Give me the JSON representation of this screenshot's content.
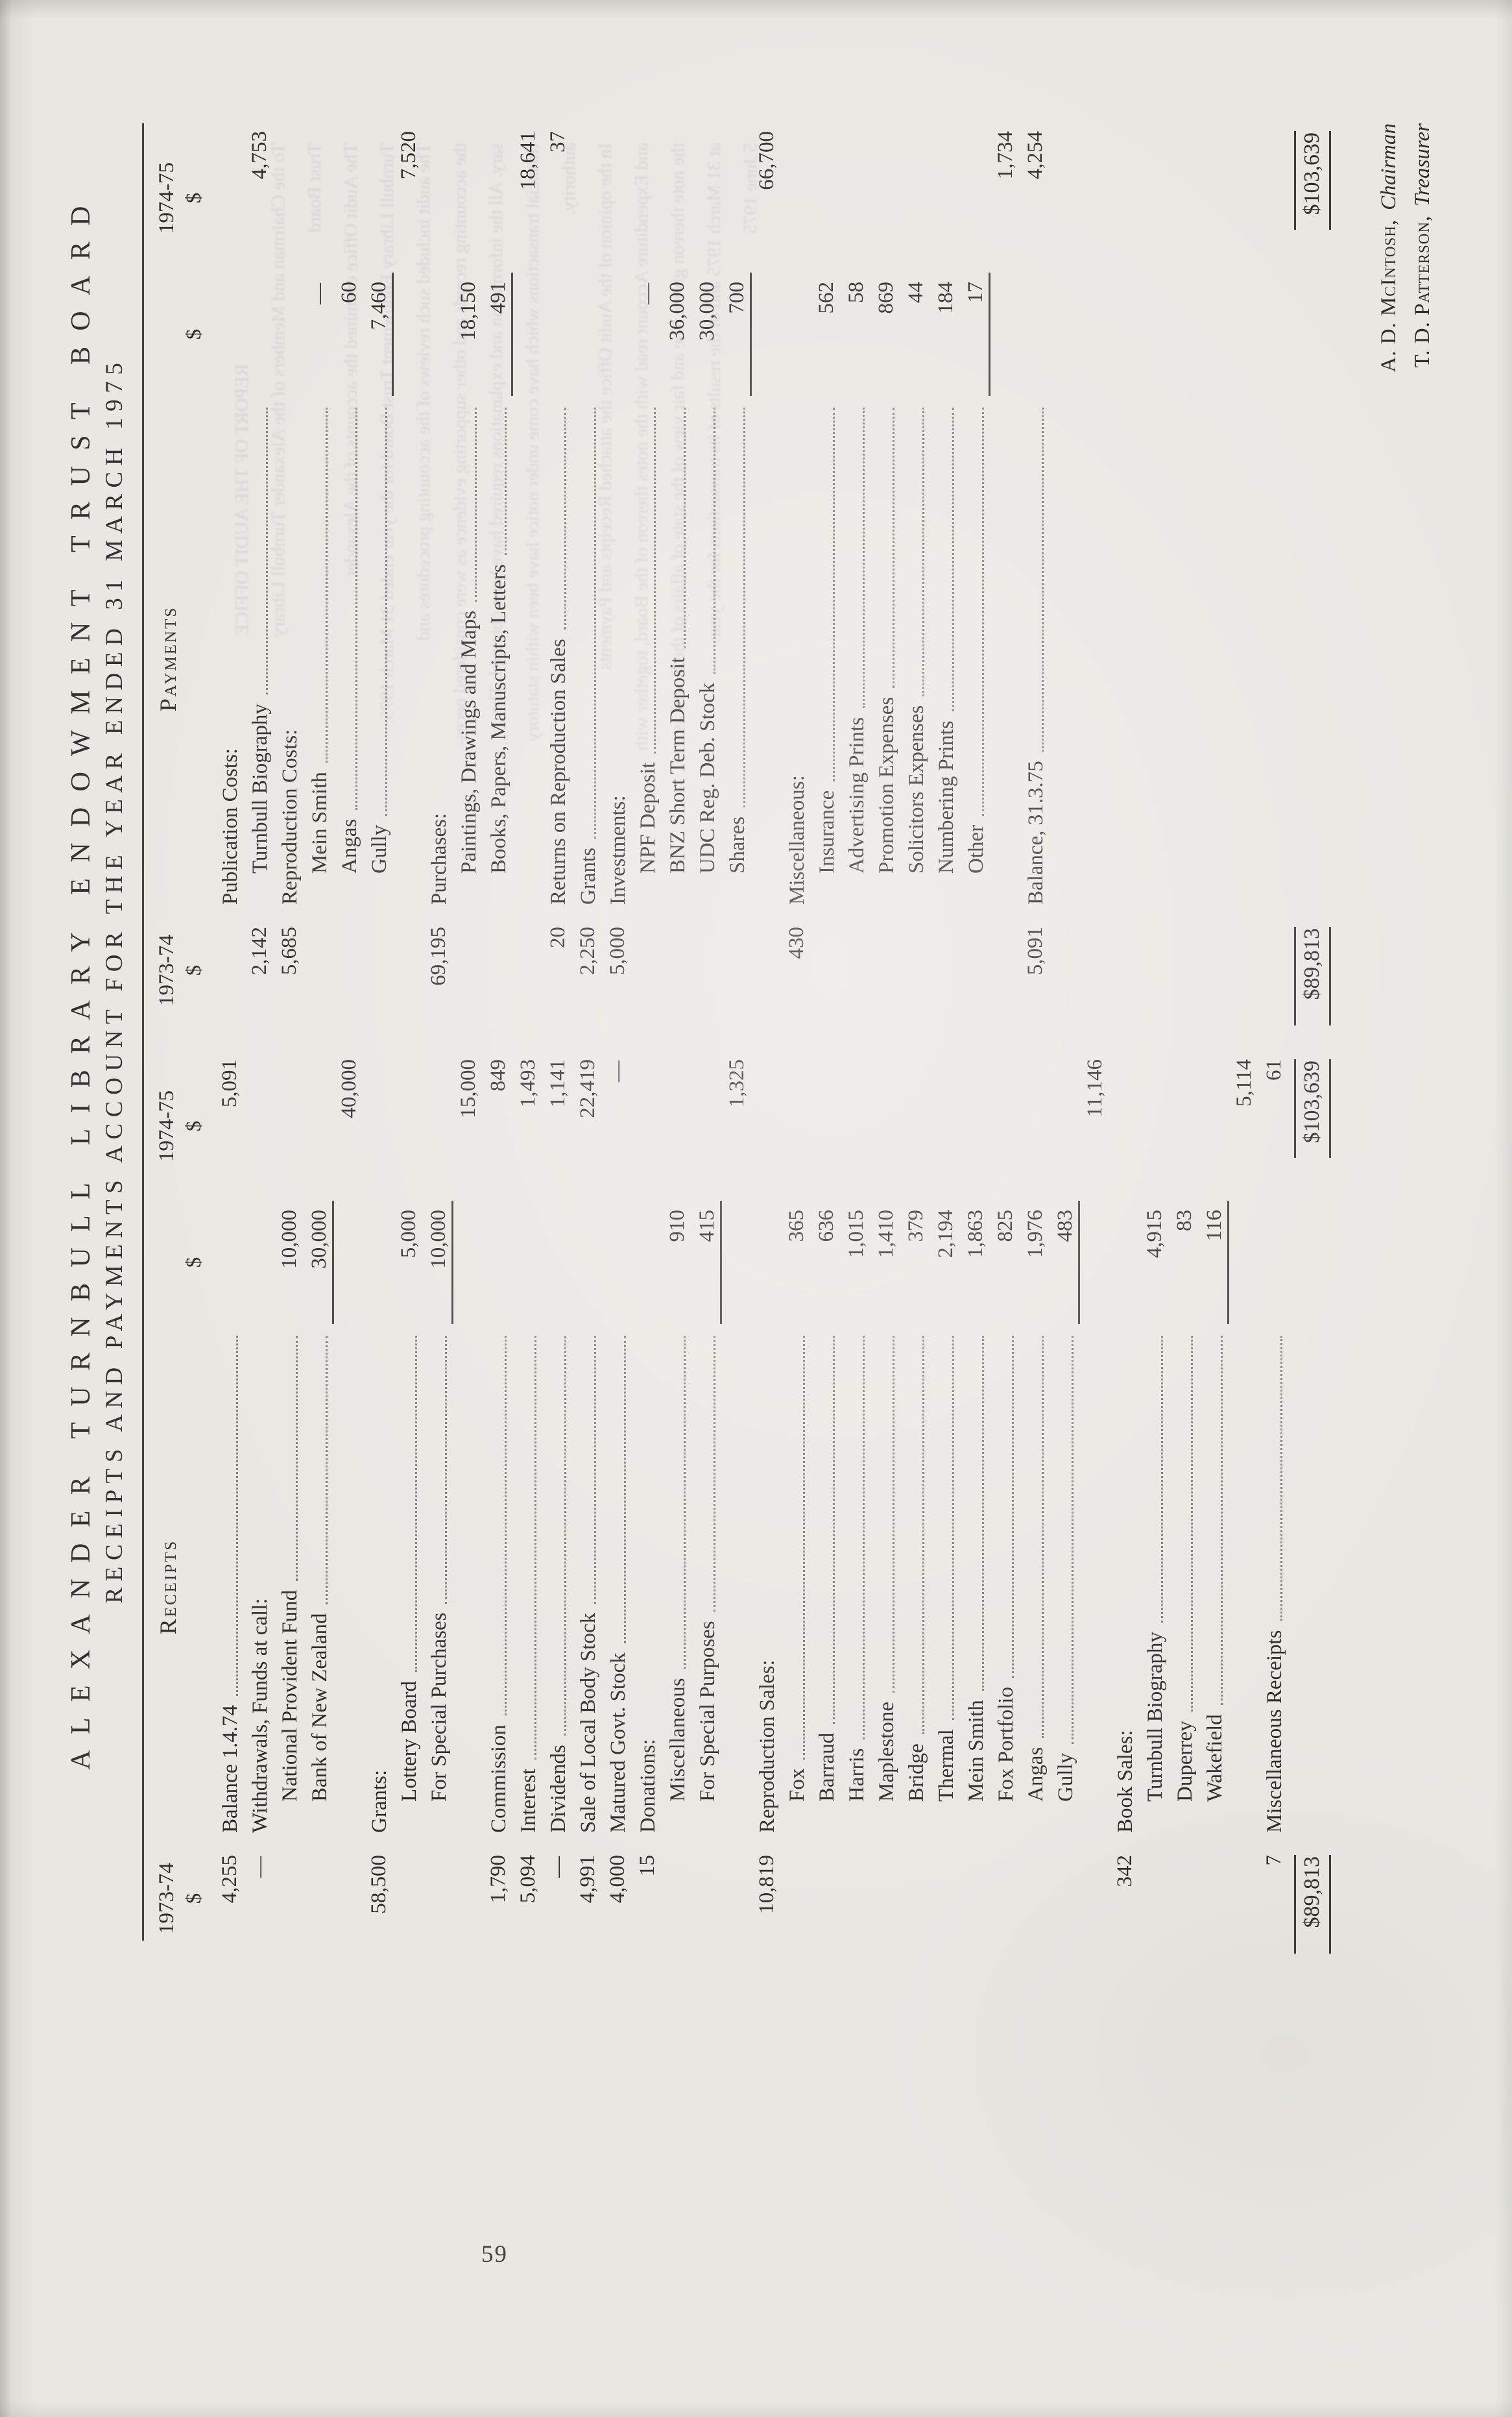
{
  "page": {
    "number": "59"
  },
  "title": {
    "line1": "ALEXANDER TURNBULL LIBRARY ENDOWMENT TRUST BOARD",
    "line2": "RECEIPTS AND PAYMENTS ACCOUNT FOR THE YEAR ENDED 31 MARCH 1975"
  },
  "table": {
    "receipts": {
      "heading": "Receipts",
      "prev_year": "1973-74",
      "cur_year": "1974-75",
      "dollar": "$",
      "rows": [
        {
          "l": "Balance 1.4.74",
          "dt": 1,
          "p": "4,255",
          "t": "5,091"
        },
        {
          "l": "Withdrawals, Funds at call:",
          "p": "—"
        },
        {
          "l": "National Provident Fund",
          "i": 1,
          "dt": 1,
          "d": "10,000"
        },
        {
          "l": "Bank of New Zealand",
          "i": 1,
          "dt": 1,
          "d": "30,000",
          "r": 1
        },
        {
          "s": 1,
          "t": "40,000"
        },
        {
          "l": "Grants:",
          "p": "58,500"
        },
        {
          "l": "Lottery Board",
          "i": 1,
          "dt": 1,
          "d": "5,000"
        },
        {
          "l": "For Special Purchases",
          "i": 1,
          "dt": 1,
          "d": "10,000",
          "r": 1
        },
        {
          "s": 1,
          "t": "15,000"
        },
        {
          "l": "Commission",
          "dt": 1,
          "p": "1,790",
          "t": "849"
        },
        {
          "l": "Interest",
          "dt": 1,
          "p": "5,094",
          "t": "1,493"
        },
        {
          "l": "Dividends",
          "dt": 1,
          "p": "—",
          "t": "1,141"
        },
        {
          "l": "Sale of Local Body Stock",
          "dt": 1,
          "p": "4,991",
          "t": "22,419"
        },
        {
          "l": "Matured Govt. Stock",
          "dt": 1,
          "p": "4,000",
          "t": "—"
        },
        {
          "l": "Donations:",
          "p": "15"
        },
        {
          "l": "Miscellaneous",
          "i": 1,
          "dt": 1,
          "d": "910"
        },
        {
          "l": "For Special Purposes",
          "i": 1,
          "dt": 1,
          "d": "415",
          "r": 1
        },
        {
          "s": 1,
          "t": "1,325"
        },
        {
          "l": "Reproduction Sales:",
          "p": "10,819"
        },
        {
          "l": "Fox",
          "i": 1,
          "dt": 1,
          "d": "365"
        },
        {
          "l": "Barraud",
          "i": 1,
          "dt": 1,
          "d": "636"
        },
        {
          "l": "Harris",
          "i": 1,
          "dt": 1,
          "d": "1,015"
        },
        {
          "l": "Maplestone",
          "i": 1,
          "dt": 1,
          "d": "1,410"
        },
        {
          "l": "Bridge",
          "i": 1,
          "dt": 1,
          "d": "379"
        },
        {
          "l": "Thermal",
          "i": 1,
          "dt": 1,
          "d": "2,194"
        },
        {
          "l": "Mein Smith",
          "i": 1,
          "dt": 1,
          "d": "1,863"
        },
        {
          "l": "Fox Portfolio",
          "i": 1,
          "dt": 1,
          "d": "825"
        },
        {
          "l": "Angas",
          "i": 1,
          "dt": 1,
          "d": "1,976"
        },
        {
          "l": "Gully",
          "i": 1,
          "dt": 1,
          "d": "483",
          "r": 1
        },
        {
          "s": 1,
          "t": "11,146"
        },
        {
          "l": "Book Sales:",
          "p": "342"
        },
        {
          "l": "Turnbull Biography",
          "i": 1,
          "dt": 1,
          "d": "4,915"
        },
        {
          "l": "Duperrey",
          "i": 1,
          "dt": 1,
          "d": "83"
        },
        {
          "l": "Wakefield",
          "i": 1,
          "dt": 1,
          "d": "116",
          "r": 1
        },
        {
          "s": 1,
          "t": "5,114"
        },
        {
          "l": "Miscellaneous Receipts",
          "dt": 1,
          "p": "7",
          "t": "61"
        }
      ],
      "total_prev": "$89,813",
      "total_cur": "$103,639"
    },
    "payments": {
      "heading": "Payments",
      "prev_year": "1973-74",
      "cur_year": "1974-75",
      "dollar": "$",
      "rows": [
        {
          "l": "Publication Costs:"
        },
        {
          "l": "Turnbull Biography",
          "i": 1,
          "dt": 1,
          "p": "2,142",
          "t": "4,753"
        },
        {
          "l": "Reproduction Costs:",
          "p": "5,685"
        },
        {
          "l": "Mein Smith",
          "i": 1,
          "dt": 1,
          "d": "—"
        },
        {
          "l": "Angas",
          "i": 1,
          "dt": 1,
          "d": "60"
        },
        {
          "l": "Gully",
          "i": 1,
          "dt": 1,
          "d": "7,460",
          "r": 1
        },
        {
          "s": 1,
          "t": "7,520"
        },
        {
          "l": "Purchases:",
          "p": "69,195"
        },
        {
          "l": "Paintings, Drawings and Maps",
          "i": 1,
          "dt": 1,
          "d": "18,150"
        },
        {
          "l": "Books, Papers, Manuscripts, Letters",
          "i": 1,
          "dt": 1,
          "d": "491",
          "r": 1
        },
        {
          "s": 1,
          "t": "18,641"
        },
        {
          "l": "Returns on Reproduction Sales",
          "dt": 1,
          "p": "20",
          "t": "37"
        },
        {
          "l": "Grants",
          "dt": 1,
          "p": "2,250"
        },
        {
          "l": "Investments:",
          "p": "5,000"
        },
        {
          "l": "NPF Deposit",
          "i": 1,
          "dt": 1,
          "d": "—"
        },
        {
          "l": "BNZ Short Term Deposit",
          "i": 1,
          "dt": 1,
          "d": "36,000"
        },
        {
          "l": "UDC Reg. Deb. Stock",
          "i": 1,
          "dt": 1,
          "d": "30,000"
        },
        {
          "l": "Shares",
          "i": 1,
          "dt": 1,
          "d": "700",
          "r": 1
        },
        {
          "s": 1,
          "t": "66,700"
        },
        {
          "l": "Miscellaneous:",
          "p": "430"
        },
        {
          "l": "Insurance",
          "i": 1,
          "dt": 1,
          "d": "562"
        },
        {
          "l": "Advertising Prints",
          "i": 1,
          "dt": 1,
          "d": "58"
        },
        {
          "l": "Promotion Expenses",
          "i": 1,
          "dt": 1,
          "d": "869"
        },
        {
          "l": "Solicitors Expenses",
          "i": 1,
          "dt": 1,
          "d": "44"
        },
        {
          "l": "Numbering Prints",
          "i": 1,
          "dt": 1,
          "d": "184"
        },
        {
          "l": "Other",
          "i": 1,
          "dt": 1,
          "d": "17",
          "r": 1
        },
        {
          "s": 1,
          "t": "1,734"
        },
        {
          "l": "Balance, 31.3.75",
          "dt": 1,
          "p": "5,091",
          "t": "4,254"
        }
      ],
      "total_prev": "$89,813",
      "total_cur": "$103,639"
    }
  },
  "signatures": [
    {
      "name": "A. D. McIntosh,",
      "role": "Chairman"
    },
    {
      "name": "T. D. Patterson,",
      "role": "Treasurer"
    }
  ],
  "ghost_text": {
    "lines": [
      "REPORT OF THE AUDIT OFFICE",
      "To the Chairman and Members of the Alexander Turnbull Library",
      "Trust Board",
      "The Audit Office examined the accounts of the Alexander",
      "Turnbull Library Endowment Trust Board for the year ended 31 March 1975.",
      "The audit included such reviews of the accounting procedures and",
      "the accounting records and other supporting evidence as were considered neces-",
      "sary. All the information and explanations required have been obtained. The",
      "financial transactions which have come under notice have been within statutory",
      "authority.",
      "In the opinion of the Audit Office the attached Receipts and Payments",
      "and Expenditure Account read with the notes thereon of the Board, together with",
      "the note thereon give a true and fair view of the state of affairs of the Board as",
      "at 31 March 1975 and of the results of its transactions for the year.",
      "5 June 1975"
    ]
  }
}
